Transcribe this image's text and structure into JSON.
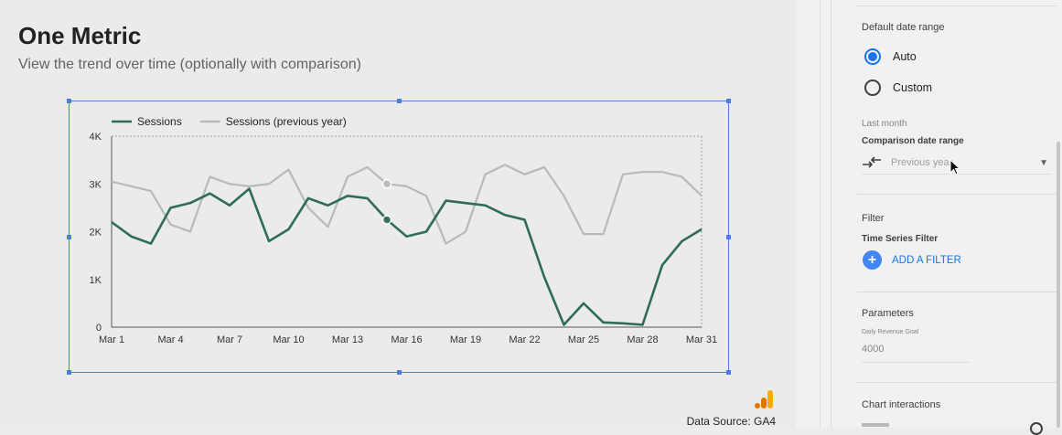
{
  "report": {
    "title": "One Metric",
    "subtitle": "View the trend over time (optionally with comparison)",
    "data_source": "Data Source: GA4"
  },
  "colors": {
    "series_current": "#2f6b5a",
    "series_previous": "#b5bbb8",
    "selection": "#4a7fd6",
    "accent": "#1a73e8",
    "ga_orange": "#f9ab00",
    "ga_dark_orange": "#e37400"
  },
  "chart_data": {
    "type": "line",
    "legend_position": "top-left",
    "grid": false,
    "ylim": [
      0,
      4000
    ],
    "y_ticks": [
      "0",
      "1K",
      "2K",
      "3K",
      "4K"
    ],
    "y_tick_values": [
      0,
      1000,
      2000,
      3000,
      4000
    ],
    "x_ticks": [
      "Mar 1",
      "Mar 4",
      "Mar 7",
      "Mar 10",
      "Mar 13",
      "Mar 16",
      "Mar 19",
      "Mar 22",
      "Mar 25",
      "Mar 28",
      "Mar 31"
    ],
    "x_tick_days": [
      1,
      4,
      7,
      10,
      13,
      16,
      19,
      22,
      25,
      28,
      31
    ],
    "x_days": [
      1,
      2,
      3,
      4,
      5,
      6,
      7,
      8,
      9,
      10,
      11,
      12,
      13,
      14,
      15,
      16,
      17,
      18,
      19,
      20,
      21,
      22,
      23,
      24,
      25,
      26,
      27,
      28,
      29,
      30,
      31
    ],
    "highlight_day": 15,
    "series": [
      {
        "name": "Sessions",
        "values": [
          2200,
          1900,
          1750,
          2500,
          2600,
          2800,
          2550,
          2900,
          1800,
          2050,
          2700,
          2550,
          2750,
          2700,
          2250,
          1900,
          2000,
          2650,
          2600,
          2550,
          2350,
          2250,
          1050,
          50,
          500,
          100,
          80,
          50,
          1300,
          1800,
          2050
        ]
      },
      {
        "name": "Sessions (previous year)",
        "values": [
          3050,
          2950,
          2850,
          2150,
          2000,
          3150,
          3000,
          2950,
          3000,
          3300,
          2500,
          2100,
          3150,
          3350,
          3000,
          2950,
          2750,
          1750,
          2000,
          3200,
          3400,
          3200,
          3350,
          2750,
          1950,
          1950,
          3200,
          3250,
          3250,
          3150,
          2750
        ]
      }
    ]
  },
  "panel": {
    "date_range_title": "Default date range",
    "radio_auto": "Auto",
    "radio_custom": "Custom",
    "selected_option": "Auto",
    "last_month": "Last month",
    "comparison_title": "Comparison date range",
    "comparison_value": "Previous year",
    "filter_title": "Filter",
    "time_series_filter": "Time Series Filter",
    "add_filter": "ADD A FILTER",
    "parameters_title": "Parameters",
    "revenue_goal_label": "Daily Revenue Goal",
    "revenue_goal_value": "4000",
    "chart_interactions_title": "Chart interactions"
  }
}
